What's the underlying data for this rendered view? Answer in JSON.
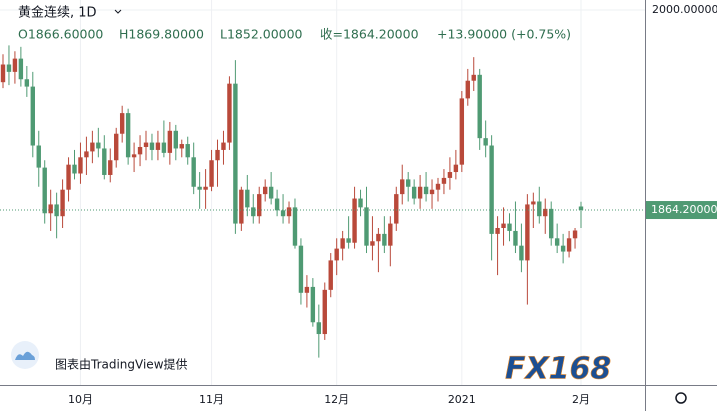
{
  "header": {
    "symbol": "黄金连续, 1D",
    "open": "O1866.60000",
    "high": "H1869.80000",
    "low": "L1852.00000",
    "close": "收=1864.20000",
    "change": "+13.90000 (+0.75%)"
  },
  "watermark": "图表由TradingView提供",
  "logo": "FX168",
  "chart_data": {
    "type": "candlestick",
    "categories": [
      null,
      null,
      null,
      null,
      null,
      null,
      null,
      null,
      null,
      null,
      null,
      null,
      null,
      "10月",
      null,
      null,
      null,
      null,
      null,
      null,
      null,
      null,
      null,
      null,
      null,
      null,
      null,
      null,
      null,
      null,
      null,
      null,
      null,
      null,
      null,
      "11月",
      null,
      null,
      null,
      null,
      null,
      null,
      null,
      null,
      null,
      null,
      null,
      null,
      null,
      null,
      null,
      null,
      null,
      null,
      null,
      null,
      "12月",
      null,
      null,
      null,
      null,
      null,
      null,
      null,
      null,
      null,
      null,
      null,
      null,
      null,
      null,
      null,
      null,
      null,
      null,
      null,
      null,
      "2021",
      null,
      null,
      null,
      null,
      null,
      null,
      null,
      null,
      null,
      null,
      null,
      null,
      null,
      null,
      null,
      null,
      null,
      null,
      null,
      "2月"
    ],
    "open": [
      1951,
      1963,
      1958,
      1967,
      1953,
      1948,
      1908,
      1893,
      1862,
      1868,
      1860,
      1878,
      1895,
      1889,
      1900,
      1904,
      1910,
      1906,
      1888,
      1898,
      1916,
      1930,
      1900,
      1902,
      1907,
      1910,
      1905,
      1910,
      1903,
      1918,
      1906,
      1909,
      1900,
      1880,
      1878,
      1880,
      1898,
      1905,
      1910,
      1950,
      1855,
      1878,
      1866,
      1860,
      1875,
      1880,
      1872,
      1864,
      1860,
      1866,
      1840,
      1808,
      1812,
      1788,
      1780,
      1810,
      1830,
      1838,
      1845,
      1842,
      1872,
      1866,
      1840,
      1843,
      1848,
      1840,
      1855,
      1875,
      1885,
      1880,
      1872,
      1880,
      1875,
      1878,
      1882,
      1886,
      1890,
      1895,
      1940,
      1952,
      1956,
      1913,
      1908,
      1848,
      1852,
      1855,
      1850,
      1840,
      1830,
      1868,
      1870,
      1860,
      1865,
      1845,
      1840,
      1836,
      1845,
      1866.6
    ],
    "high": [
      1970,
      1976,
      1972,
      1975,
      1962,
      1958,
      1918,
      1898,
      1878,
      1876,
      1885,
      1900,
      1905,
      1910,
      1914,
      1918,
      1920,
      1915,
      1906,
      1920,
      1935,
      1933,
      1910,
      1915,
      1918,
      1916,
      1918,
      1925,
      1924,
      1922,
      1912,
      1914,
      1910,
      1890,
      1892,
      1905,
      1912,
      1918,
      1955,
      1966,
      1880,
      1888,
      1875,
      1880,
      1885,
      1890,
      1878,
      1875,
      1870,
      1872,
      1845,
      1820,
      1818,
      1800,
      1815,
      1835,
      1845,
      1850,
      1860,
      1880,
      1878,
      1880,
      1860,
      1852,
      1860,
      1860,
      1880,
      1895,
      1890,
      1885,
      1888,
      1890,
      1885,
      1886,
      1892,
      1900,
      1905,
      1945,
      1960,
      1968,
      1960,
      1925,
      1915,
      1860,
      1866,
      1862,
      1870,
      1855,
      1875,
      1876,
      1880,
      1872,
      1870,
      1855,
      1848,
      1850,
      1852,
      1869.8
    ],
    "low": [
      1947,
      1949,
      1950,
      1948,
      1941,
      1900,
      1880,
      1855,
      1850,
      1845,
      1852,
      1870,
      1885,
      1882,
      1888,
      1896,
      1900,
      1885,
      1883,
      1893,
      1910,
      1895,
      1890,
      1894,
      1898,
      1898,
      1898,
      1900,
      1895,
      1898,
      1900,
      1895,
      1875,
      1865,
      1865,
      1877,
      1880,
      1895,
      1905,
      1848,
      1850,
      1860,
      1855,
      1855,
      1870,
      1868,
      1860,
      1855,
      1855,
      1838,
      1800,
      1798,
      1785,
      1764,
      1776,
      1805,
      1820,
      1830,
      1838,
      1838,
      1860,
      1835,
      1830,
      1822,
      1835,
      1826,
      1850,
      1868,
      1870,
      1868,
      1865,
      1870,
      1865,
      1870,
      1875,
      1878,
      1885,
      1890,
      1935,
      1945,
      1905,
      1900,
      1830,
      1820,
      1840,
      1843,
      1835,
      1822,
      1800,
      1852,
      1855,
      1848,
      1840,
      1835,
      1828,
      1832,
      1838,
      1852
    ],
    "close": [
      1963,
      1958,
      1967,
      1953,
      1948,
      1908,
      1893,
      1862,
      1868,
      1860,
      1878,
      1895,
      1889,
      1900,
      1904,
      1910,
      1906,
      1888,
      1898,
      1916,
      1930,
      1900,
      1902,
      1907,
      1910,
      1905,
      1910,
      1903,
      1918,
      1906,
      1909,
      1900,
      1880,
      1878,
      1880,
      1898,
      1905,
      1910,
      1950,
      1855,
      1878,
      1866,
      1860,
      1875,
      1880,
      1872,
      1864,
      1860,
      1866,
      1840,
      1808,
      1812,
      1788,
      1780,
      1810,
      1830,
      1838,
      1845,
      1842,
      1872,
      1866,
      1840,
      1843,
      1848,
      1840,
      1855,
      1875,
      1885,
      1880,
      1872,
      1880,
      1875,
      1878,
      1882,
      1886,
      1890,
      1895,
      1940,
      1952,
      1956,
      1913,
      1908,
      1848,
      1852,
      1855,
      1850,
      1840,
      1830,
      1868,
      1870,
      1860,
      1865,
      1845,
      1840,
      1836,
      1845,
      1850.3,
      1864.2
    ],
    "last_close_label": "1864.20000",
    "up_color": "#b9493a",
    "down_color": "#4f9a73",
    "ylim": [
      1745.4,
      2006.8
    ],
    "yticks": [
      {
        "value": 2000,
        "label": "2000.00000"
      }
    ],
    "grid": true
  }
}
